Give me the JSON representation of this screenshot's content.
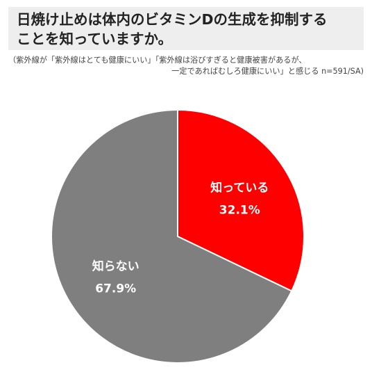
{
  "title": {
    "line1": "日焼け止めは体内のビタミンDの生成を抑制する",
    "line2": "ことを知っていますか。"
  },
  "note": {
    "line1": "（紫外線が「紫外線はとても健康にいい」「紫外線は浴びすぎると健康被害があるが、",
    "line2": "一定であればむしろ健康にいい」と感じる n=591/SA)"
  },
  "chart_data": {
    "type": "pie",
    "title": "日焼け止めは体内のビタミンDの生成を抑制することを知っていますか。",
    "slices": [
      {
        "label": "知っている",
        "value": 32.1,
        "value_label": "32.1%",
        "color": "#ff0000"
      },
      {
        "label": "知らない",
        "value": 67.9,
        "value_label": "67.9%",
        "color": "#7f7f7f"
      }
    ],
    "start_angle": "12 o'clock",
    "direction": "clockwise",
    "slice_border_color": "#ffffff"
  }
}
